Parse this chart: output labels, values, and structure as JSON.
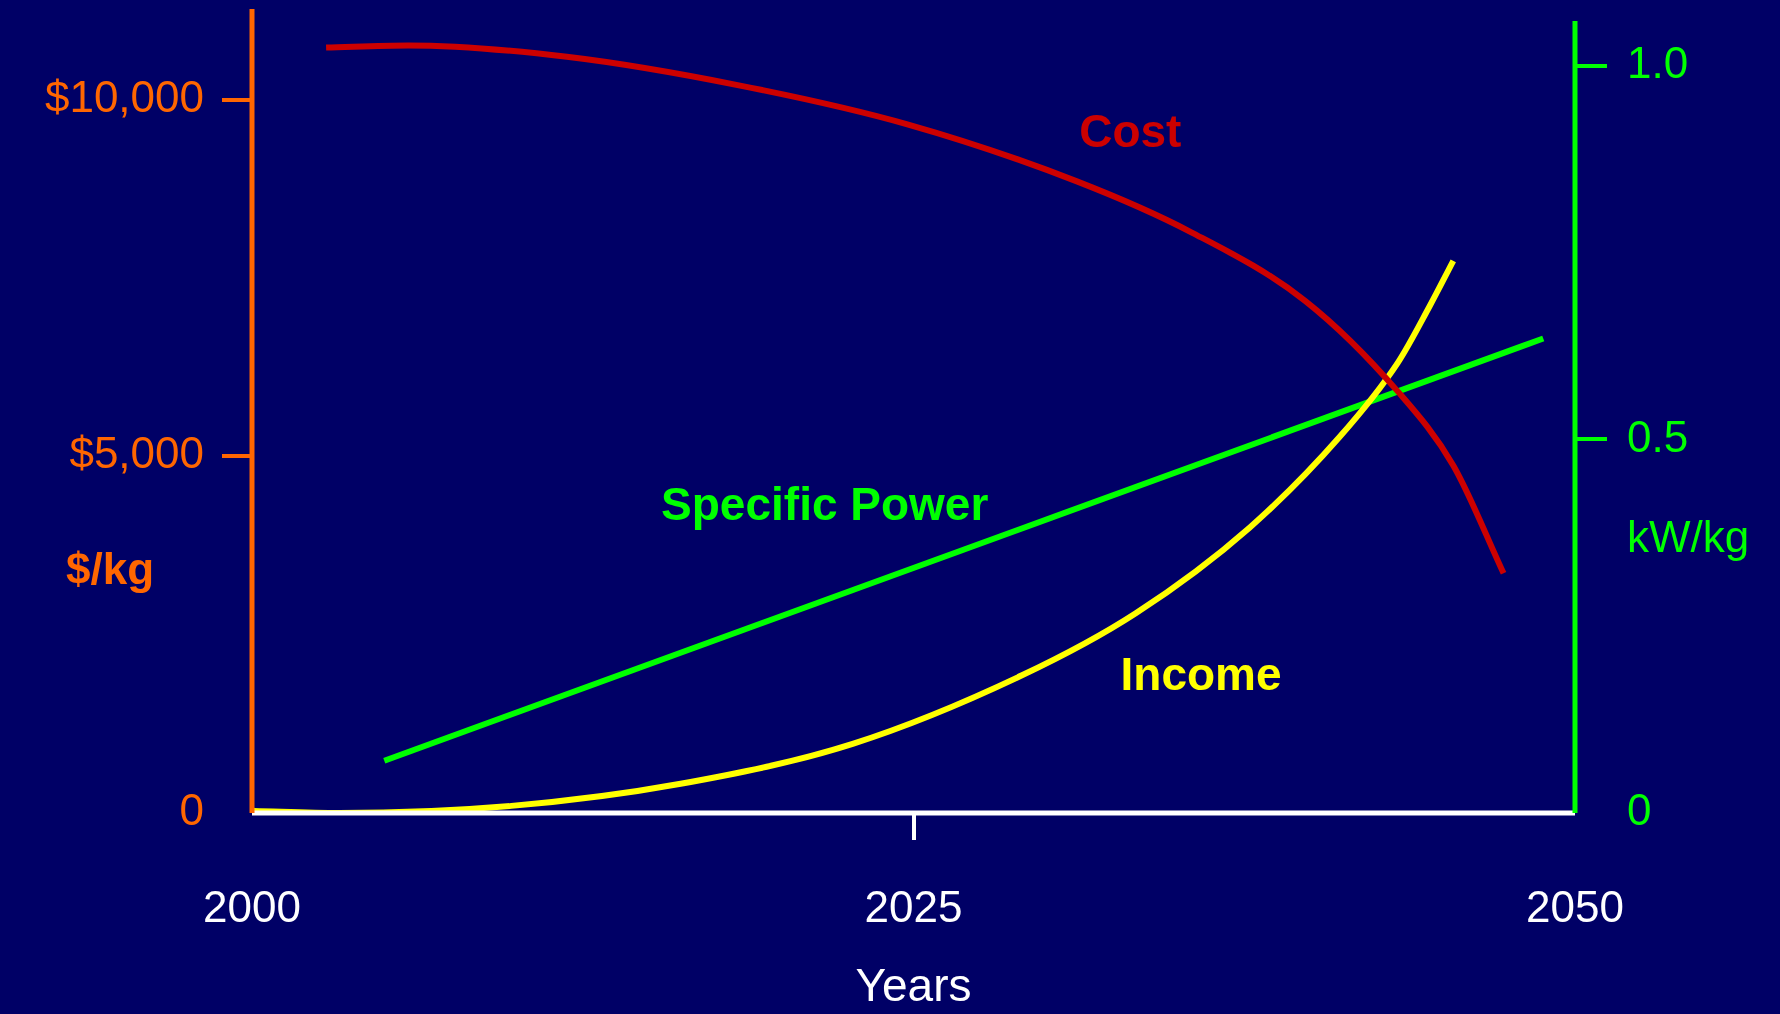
{
  "chart_data": {
    "type": "line",
    "xlabel": "Years",
    "ylabel": "$/kg",
    "y2label": "kW/kg",
    "xlim": [
      2000,
      2050
    ],
    "xticks": [
      2000,
      2025,
      2050
    ],
    "ylim": [
      0,
      11270
    ],
    "yticks": [
      {
        "value": 0,
        "label": "0"
      },
      {
        "value": 5000,
        "label": "$5,000"
      },
      {
        "value": 10000,
        "label": "$10,000"
      }
    ],
    "y2lim": [
      0,
      1.076
    ],
    "y2ticks": [
      {
        "value": 0,
        "label": "0"
      },
      {
        "value": 0.5,
        "label": "0.5"
      },
      {
        "value": 1,
        "label": "1.0"
      }
    ],
    "grid": false,
    "legend": false,
    "marker": "none",
    "line_style": "solid",
    "series": [
      {
        "name": "Cost",
        "color": "#cc0000",
        "x": [
          2002.8,
          2005.9,
          2011.9,
          2018.4,
          2024.8,
          2031.2,
          2035.5,
          2039.8,
          2043.3,
          2045.4,
          2047.3
        ],
        "values": [
          10730,
          10760,
          10600,
          10200,
          9650,
          8850,
          8140,
          7180,
          5910,
          4870,
          3360
        ]
      },
      {
        "name": "Income",
        "color": "#ffff00",
        "x": [
          2000,
          2003.3,
          2009.8,
          2016.2,
          2022.7,
          2029.1,
          2033.4,
          2037.7,
          2041.1,
          2043.3,
          2044.5,
          2045.4
        ],
        "values": [
          30,
          0,
          100,
          410,
          970,
          1930,
          2800,
          4000,
          5270,
          6310,
          7100,
          7740
        ]
      },
      {
        "name": "Specific Power",
        "color": "#00ff00",
        "axis": "y2",
        "x": [
          2005,
          2048.8
        ],
        "values": [
          0.07,
          0.635
        ]
      }
    ]
  }
}
